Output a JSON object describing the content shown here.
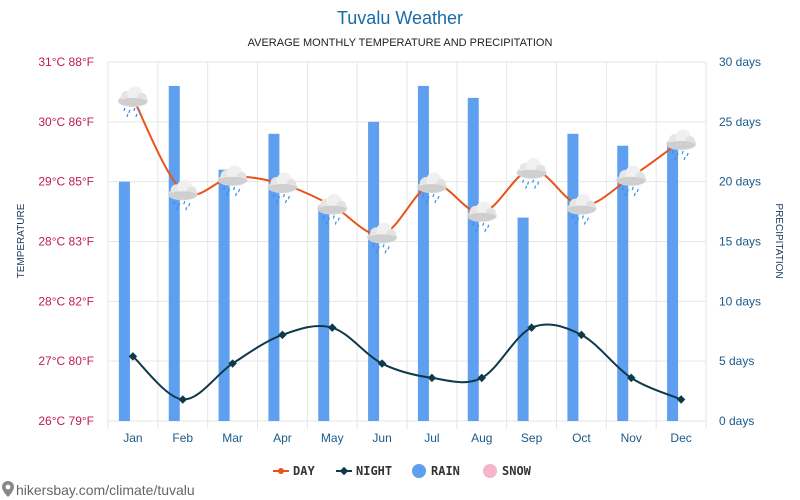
{
  "chart_data": {
    "type": "bar",
    "title": "Tuvalu Weather",
    "subtitle": "AVERAGE MONTHLY TEMPERATURE AND PRECIPITATION",
    "categories": [
      "Jan",
      "Feb",
      "Mar",
      "Apr",
      "May",
      "Jun",
      "Jul",
      "Aug",
      "Sep",
      "Oct",
      "Nov",
      "Dec"
    ],
    "left_axis": {
      "label": "TEMPERATURE",
      "ticks": [
        "26°C 79°F",
        "27°C 80°F",
        "28°C 82°F",
        "28°C 83°F",
        "29°C 85°F",
        "30°C 86°F",
        "31°C 88°F"
      ],
      "range_celsius": [
        26,
        31
      ]
    },
    "right_axis": {
      "label": "PRECIPITATION",
      "ticks": [
        "0 days",
        "5 days",
        "10 days",
        "15 days",
        "20 days",
        "25 days",
        "30 days"
      ],
      "range_days": [
        0,
        30
      ]
    },
    "series": [
      {
        "name": "DAY",
        "type": "line",
        "color": "#e8541c",
        "unit": "°C",
        "values": [
          30.5,
          29.2,
          29.4,
          29.3,
          29.0,
          28.6,
          29.3,
          28.9,
          29.5,
          29.0,
          29.4,
          29.9
        ]
      },
      {
        "name": "NIGHT",
        "type": "line",
        "color": "#0e3a4a",
        "unit": "°C",
        "values": [
          26.9,
          26.3,
          26.8,
          27.2,
          27.3,
          26.8,
          26.6,
          26.6,
          27.3,
          27.2,
          26.6,
          26.3
        ]
      },
      {
        "name": "RAIN",
        "type": "bar",
        "color": "#5f9ff0",
        "unit": "days",
        "values": [
          20,
          28,
          21,
          24,
          18,
          25,
          28,
          27,
          17,
          24,
          23,
          23
        ]
      },
      {
        "name": "SNOW",
        "type": "bar",
        "color": "#f4b6c8",
        "unit": "days",
        "values": [
          0,
          0,
          0,
          0,
          0,
          0,
          0,
          0,
          0,
          0,
          0,
          0
        ]
      }
    ],
    "grid": true,
    "legend_position": "bottom"
  },
  "footer": "hikersbay.com/climate/tuvalu",
  "icons": {
    "weather": "rain-cloud-icon",
    "pin": "map-pin-icon"
  }
}
